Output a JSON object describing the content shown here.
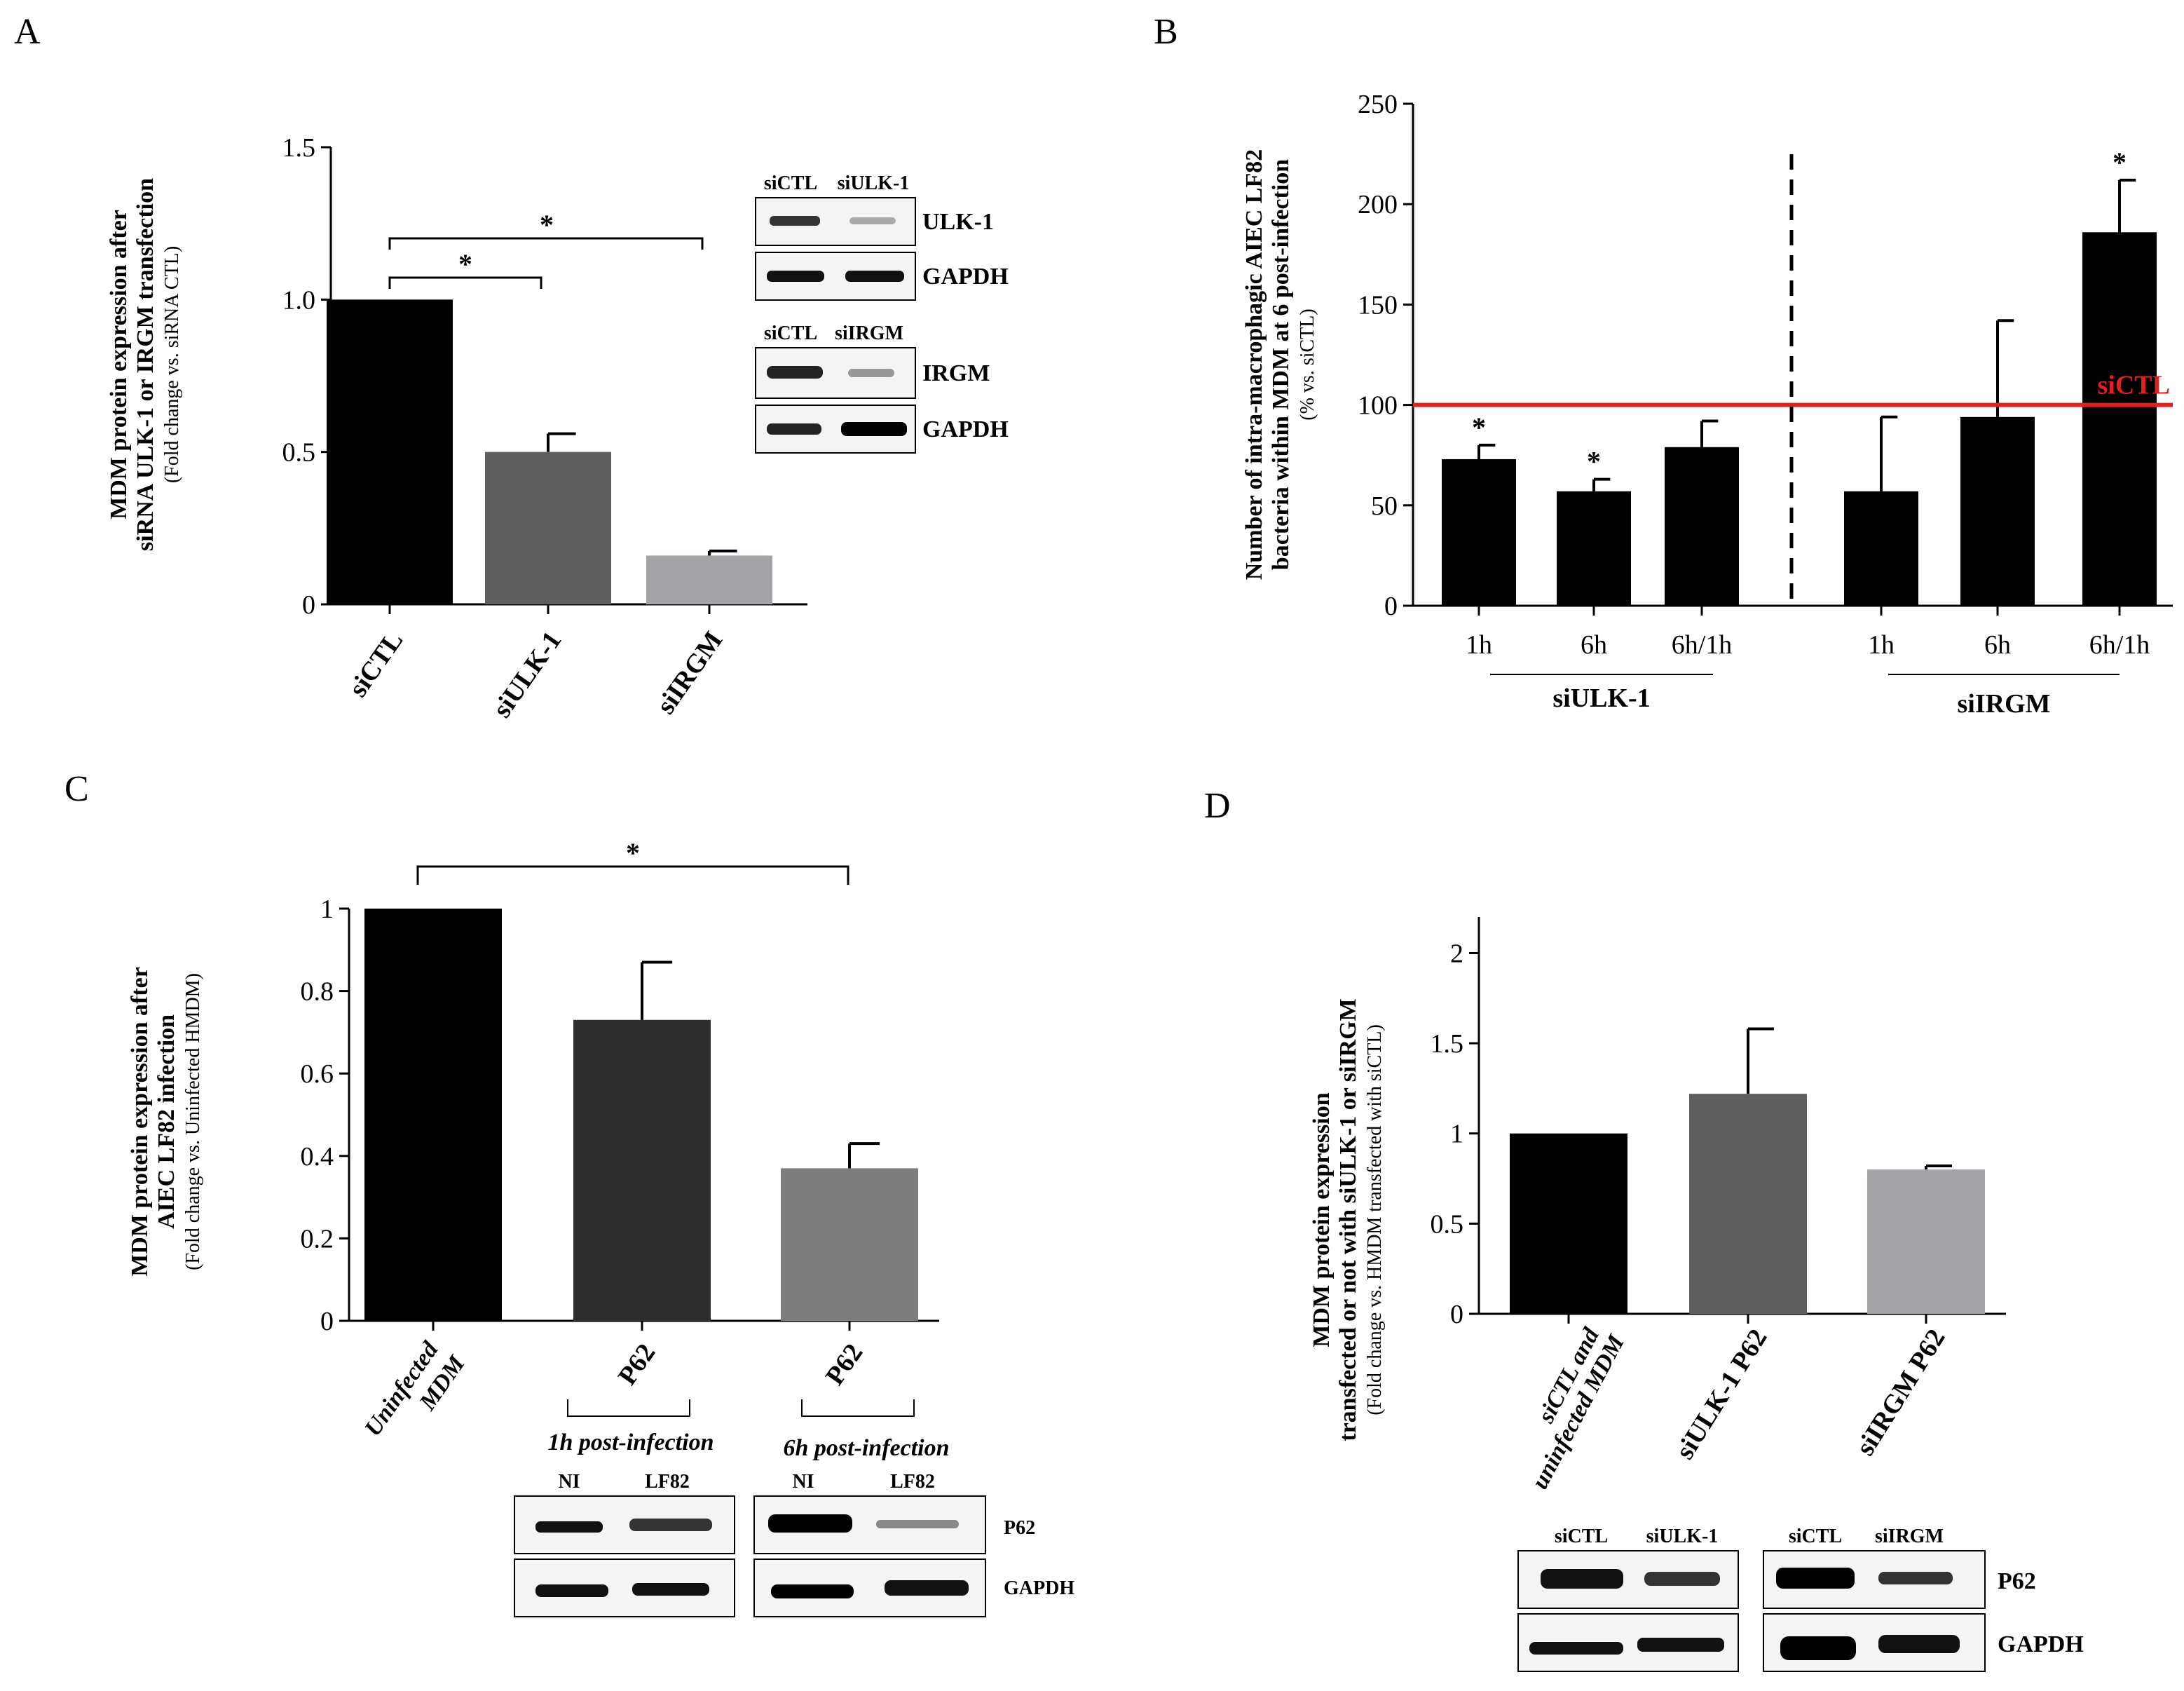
{
  "panels": {
    "A": {
      "letter": "A",
      "ylabel_line1": "MDM protein expression after",
      "ylabel_line2": "siRNA ULK-1 or IRGM transfection",
      "ylabel_sub": "(Fold change vs. siRNA CTL)",
      "yticks": [
        "0",
        "0.5",
        "1.0",
        "1.5"
      ],
      "significance": "*",
      "blot": {
        "top_lanes": [
          "siCTL",
          "siULK-1"
        ],
        "top_rows": [
          "ULK-1",
          "GAPDH"
        ],
        "bottom_lanes": [
          "siCTL",
          "siIRGM"
        ],
        "bottom_rows": [
          "IRGM",
          "GAPDH"
        ]
      }
    },
    "B": {
      "letter": "B",
      "ylabel_line1": "Number of intra-macrophagic AIEC LF82",
      "ylabel_line2": "bacteria within MDM at 6 post-infection",
      "ylabel_sub": "(% vs. siCTL)",
      "yticks": [
        "0",
        "50",
        "100",
        "150",
        "200",
        "250"
      ],
      "reference_label": "siCTL",
      "significance": "*",
      "group_labels": [
        "siULK-1",
        "siIRGM"
      ]
    },
    "C": {
      "letter": "C",
      "ylabel_line1": "MDM protein expression  after",
      "ylabel_line2": "AIEC LF82 infection",
      "ylabel_sub": "(Fold change vs. Uninfected HMDM)",
      "yticks": [
        "0",
        "0.2",
        "0.4",
        "0.6",
        "0.8",
        "1"
      ],
      "significance": "*",
      "cat0_line1": "Uninfected",
      "cat0_line2": "MDM",
      "timepoints": [
        "1h post-infection",
        "6h post-infection"
      ],
      "blot": {
        "lanes": [
          "NI",
          "LF82"
        ],
        "rows": [
          "P62",
          "GAPDH"
        ]
      }
    },
    "D": {
      "letter": "D",
      "ylabel_line1": "MDM protein expression",
      "ylabel_line2": "transfected or not with siULK-1 or siIRGM",
      "ylabel_sub": "(Fold change vs. HMDM transfected with siCTL)",
      "yticks": [
        "0",
        "0.5",
        "1",
        "1.5",
        "2"
      ],
      "cat0_line1": "siCTL and",
      "cat0_line2": "uninfected MDM",
      "blot": {
        "left_lanes": [
          "siCTL",
          "siULK-1"
        ],
        "right_lanes": [
          "siCTL",
          "siIRGM"
        ],
        "rows": [
          "P62",
          "GAPDH"
        ]
      }
    }
  },
  "chart_data": [
    {
      "panel": "A",
      "type": "bar",
      "categories": [
        "siCTL",
        "siULK-1",
        "siIRGM"
      ],
      "values": [
        1.0,
        0.5,
        0.16
      ],
      "errors": [
        0.0,
        0.06,
        0.015
      ],
      "colors": [
        "#000000",
        "#5f5f5f",
        "#a3a3a8"
      ],
      "ylim": [
        0,
        1.5
      ],
      "ylabel": "MDM protein expression after siRNA ULK-1 or IRGM transfection",
      "comparisons": [
        [
          "siCTL",
          "siULK-1",
          "*"
        ],
        [
          "siCTL",
          "siIRGM",
          "*"
        ]
      ]
    },
    {
      "panel": "B",
      "type": "bar",
      "categories": [
        "1h",
        "6h",
        "6h/1h",
        "1h",
        "6h",
        "6h/1h"
      ],
      "groups": [
        "siULK-1",
        "siULK-1",
        "siULK-1",
        "siIRGM",
        "siIRGM",
        "siIRGM"
      ],
      "values": [
        73,
        57,
        79,
        57,
        94,
        186
      ],
      "errors": [
        7,
        6,
        13,
        37,
        48,
        26
      ],
      "significant": [
        true,
        true,
        false,
        false,
        false,
        true
      ],
      "reference_line": 100,
      "reference_color": "#e0211f",
      "bar_color": "#000000",
      "ylim": [
        0,
        250
      ],
      "ylabel": "Number of intra-macrophagic AIEC LF82 bacteria within MDM at 6 post-infection"
    },
    {
      "panel": "C",
      "type": "bar",
      "categories": [
        "Uninfected MDM",
        "P62",
        "P62"
      ],
      "values": [
        1.0,
        0.73,
        0.37
      ],
      "errors": [
        0.0,
        0.14,
        0.06
      ],
      "colors": [
        "#000000",
        "#2d2d2d",
        "#7d7d7d"
      ],
      "ylim": [
        0,
        1
      ],
      "ylabel": "MDM protein expression after AIEC LF82 infection",
      "comparisons": [
        [
          "Uninfected MDM",
          "P62 6h",
          "*"
        ]
      ]
    },
    {
      "panel": "D",
      "type": "bar",
      "categories": [
        "siCTL and uninfected MDM",
        "siULK-1 P62",
        "siIRGM P62"
      ],
      "values": [
        1.0,
        1.22,
        0.8
      ],
      "errors": [
        0.0,
        0.36,
        0.02
      ],
      "colors": [
        "#000000",
        "#5f5f5f",
        "#a3a3a8"
      ],
      "ylim": [
        0,
        2.2
      ],
      "ylabel": "MDM protein expression transfected or not with siULK-1 or siIRGM"
    }
  ]
}
